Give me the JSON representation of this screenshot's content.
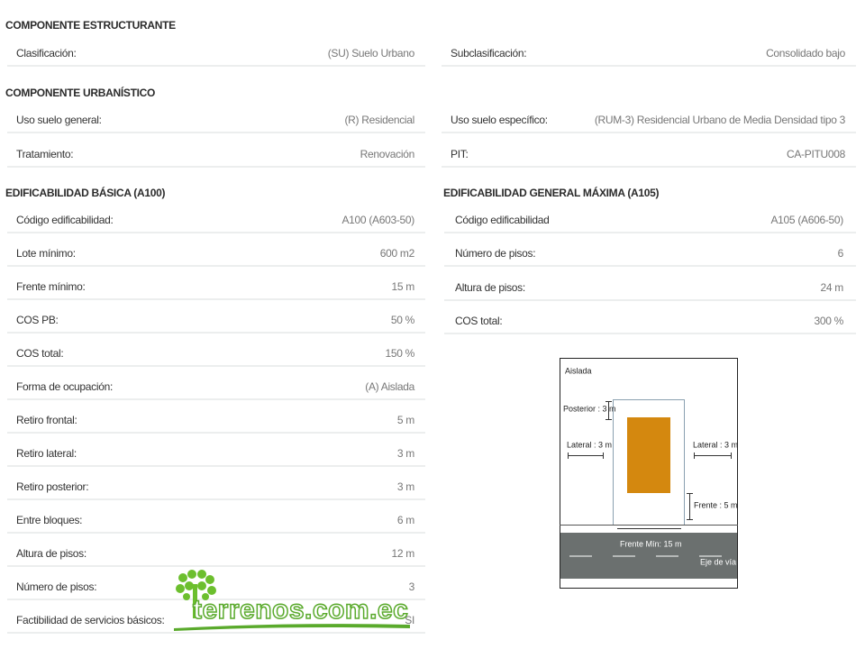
{
  "estructurante": {
    "title": "COMPONENTE ESTRUCTURANTE",
    "rows": [
      {
        "label": "Clasificación:",
        "value": "(SU) Suelo Urbano"
      },
      {
        "label": "Subclasificación:",
        "value": "Consolidado bajo"
      }
    ]
  },
  "urbanistico": {
    "title": "COMPONENTE URBANÍSTICO",
    "rows": [
      {
        "label": "Uso suelo general:",
        "value": "(R) Residencial"
      },
      {
        "label": "Uso suelo específico:",
        "value": "(RUM-3) Residencial Urbano de Media Densidad tipo 3"
      },
      {
        "label": "Tratamiento:",
        "value": "Renovación"
      },
      {
        "label": "PIT:",
        "value": "CA-PITU008"
      }
    ]
  },
  "basica": {
    "title": "EDIFICABILIDAD BÁSICA (A100)",
    "rows": [
      {
        "label": "Código edificabilidad:",
        "value": "A100 (A603-50)"
      },
      {
        "label": "Lote mínimo:",
        "value": "600 m2"
      },
      {
        "label": "Frente mínimo:",
        "value": "15 m"
      },
      {
        "label": "COS PB:",
        "value": "50 %"
      },
      {
        "label": "COS total:",
        "value": "150 %"
      },
      {
        "label": "Forma de ocupación:",
        "value": "(A) Aislada"
      },
      {
        "label": "Retiro frontal:",
        "value": "5 m"
      },
      {
        "label": "Retiro lateral:",
        "value": "3 m"
      },
      {
        "label": "Retiro posterior:",
        "value": "3 m"
      },
      {
        "label": "Entre bloques:",
        "value": "6 m"
      },
      {
        "label": "Altura de pisos:",
        "value": "12 m"
      },
      {
        "label": "Número de pisos:",
        "value": "3"
      },
      {
        "label": "Factibilidad de servicios básicos:",
        "value": "SI"
      }
    ]
  },
  "maxima": {
    "title": "EDIFICABILIDAD GENERAL MÁXIMA (A105)",
    "rows": [
      {
        "label": "Código edificabilidad",
        "value": "A105 (A606-50)"
      },
      {
        "label": "Número de pisos:",
        "value": "6"
      },
      {
        "label": "Altura de pisos:",
        "value": "24 m"
      },
      {
        "label": "COS total:",
        "value": "300 %"
      }
    ]
  },
  "diagram": {
    "type": "Aislada",
    "posterior": "Posterior : 3 m",
    "lateral_left": "Lateral : 3 m",
    "lateral_right": "Lateral : 3 m",
    "frente": "Frente : 5 m",
    "frente_min": "Frente Mín: 15 m",
    "eje": "Eje de vía"
  },
  "watermark": "terrenos.com.ec"
}
